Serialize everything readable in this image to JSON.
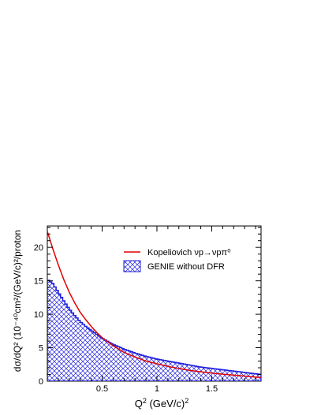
{
  "chart_data": {
    "type": "area",
    "xlabel_main": "Q",
    "xlabel_sup": "2",
    "xlabel_rest": " (GeV/c)",
    "xlabel_sup2": "2",
    "ylabel": "dσ/dQ² (10⁻⁴⁰cm²/(GeV/c)²/proton",
    "xlim": [
      0.0,
      1.95
    ],
    "ylim": [
      0,
      23.2
    ],
    "x_ticks": [
      {
        "value": 0.5,
        "label": "0.5"
      },
      {
        "value": 1.0,
        "label": "1"
      },
      {
        "value": 1.5,
        "label": "1.5"
      }
    ],
    "y_ticks": [
      {
        "value": 0,
        "label": "0"
      },
      {
        "value": 5,
        "label": "5"
      },
      {
        "value": 10,
        "label": "10"
      },
      {
        "value": 15,
        "label": "15"
      },
      {
        "value": 20,
        "label": "20"
      }
    ],
    "series": [
      {
        "name": "Kopeliovich νp→νpπ⁰",
        "kind": "line",
        "color": "#e00000",
        "x": [
          0.0,
          0.05,
          0.1,
          0.15,
          0.2,
          0.25,
          0.3,
          0.35,
          0.4,
          0.45,
          0.5,
          0.6,
          0.7,
          0.8,
          0.9,
          1.0,
          1.1,
          1.2,
          1.3,
          1.4,
          1.5,
          1.6,
          1.7,
          1.8,
          1.9,
          1.95
        ],
        "y": [
          22.4,
          19.8,
          17.4,
          15.2,
          13.3,
          11.7,
          10.3,
          9.2,
          8.2,
          7.3,
          6.5,
          5.3,
          4.3,
          3.6,
          3.0,
          2.6,
          2.2,
          1.9,
          1.6,
          1.4,
          1.2,
          1.05,
          0.9,
          0.75,
          0.6,
          0.55
        ]
      },
      {
        "name": "GENIE without DFR",
        "kind": "hist",
        "color": "#2222dd",
        "bin_width": 0.02,
        "x": [
          0.0,
          0.05,
          0.1,
          0.15,
          0.2,
          0.25,
          0.3,
          0.35,
          0.4,
          0.45,
          0.5,
          0.6,
          0.7,
          0.8,
          0.9,
          1.0,
          1.1,
          1.2,
          1.3,
          1.4,
          1.5,
          1.6,
          1.7,
          1.8,
          1.9,
          1.95
        ],
        "y": [
          15.2,
          14.6,
          13.3,
          12.0,
          10.8,
          9.8,
          8.9,
          8.2,
          7.6,
          7.0,
          6.4,
          5.5,
          4.8,
          4.2,
          3.7,
          3.3,
          3.0,
          2.7,
          2.4,
          2.1,
          1.9,
          1.7,
          1.5,
          1.3,
          1.1,
          1.0
        ]
      }
    ],
    "legend_position": "top-right"
  }
}
